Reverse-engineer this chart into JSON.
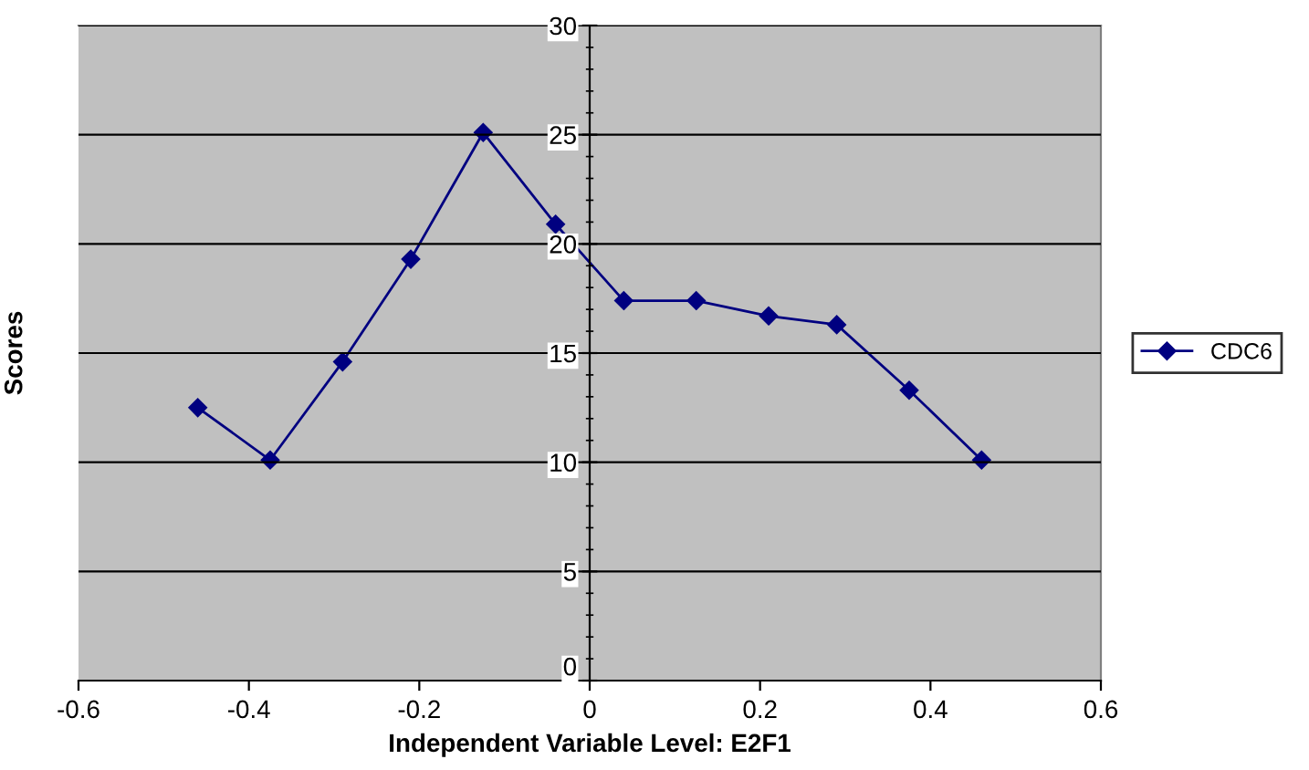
{
  "chart_data": {
    "type": "line",
    "xlabel": "Independent Variable Level: E2F1",
    "ylabel": "Scores",
    "x": [
      -0.46,
      -0.375,
      -0.29,
      -0.21,
      -0.125,
      -0.04,
      0.04,
      0.125,
      0.21,
      0.29,
      0.375,
      0.46
    ],
    "series": [
      {
        "name": "CDC6",
        "color": "#000080",
        "values": [
          12.5,
          10.1,
          14.6,
          19.3,
          25.1,
          20.9,
          17.4,
          17.4,
          16.7,
          16.3,
          13.3,
          10.1
        ]
      }
    ],
    "xlim": [
      -0.6,
      0.6
    ],
    "xticks": [
      -0.6,
      -0.4,
      -0.2,
      0,
      0.2,
      0.4,
      0.6
    ],
    "ylim": [
      0,
      30
    ],
    "yticks": [
      0,
      5,
      10,
      15,
      20,
      25,
      30
    ],
    "grid": "y",
    "legend": "right",
    "marker": "diamond",
    "line_style": "solid"
  }
}
